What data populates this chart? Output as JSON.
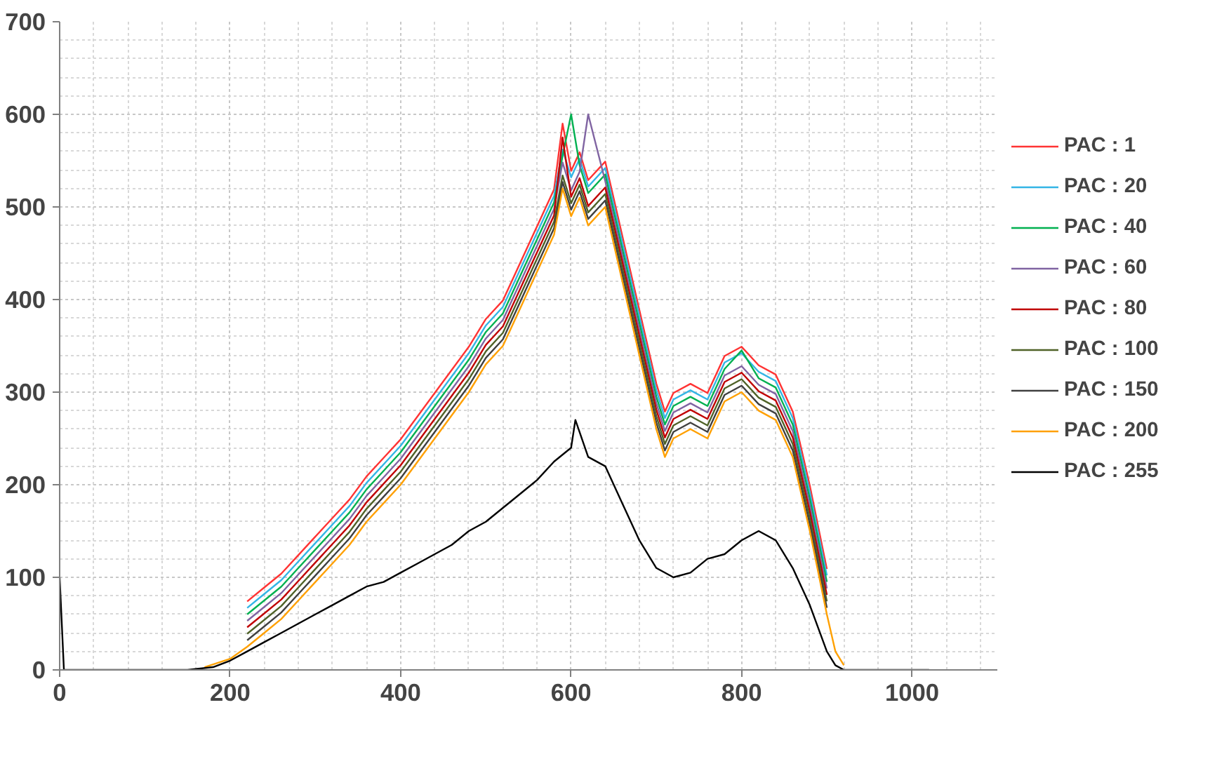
{
  "chart_data": {
    "type": "line",
    "x": [
      220,
      240,
      260,
      280,
      300,
      320,
      340,
      360,
      380,
      400,
      420,
      440,
      460,
      480,
      500,
      520,
      540,
      560,
      580,
      590,
      600,
      610,
      620,
      640,
      650,
      660,
      680,
      700,
      710,
      720,
      740,
      760,
      780,
      800,
      820,
      840,
      860,
      880,
      900
    ],
    "series": [
      {
        "name": "PAC : 1",
        "color": "#ff3333",
        "values": [
          74,
          89,
          104,
          124,
          144,
          164,
          184,
          209,
          229,
          249,
          274,
          299,
          324,
          349,
          379,
          399,
          439,
          479,
          519,
          590,
          539,
          559,
          529,
          549,
          509,
          469,
          389,
          309,
          279,
          299,
          309,
          299,
          339,
          349,
          329,
          319,
          279,
          199,
          109
        ]
      },
      {
        "name": "PAC : 20",
        "color": "#33b5e5",
        "values": [
          67,
          82,
          97,
          117,
          137,
          157,
          177,
          202,
          222,
          242,
          267,
          292,
          317,
          342,
          372,
          392,
          432,
          472,
          512,
          562,
          532,
          552,
          522,
          542,
          502,
          462,
          382,
          302,
          272,
          292,
          302,
          292,
          332,
          342,
          322,
          312,
          272,
          192,
          102
        ]
      },
      {
        "name": "PAC : 40",
        "color": "#00b050",
        "values": [
          60,
          75,
          90,
          110,
          130,
          150,
          170,
          195,
          215,
          235,
          260,
          285,
          310,
          335,
          365,
          385,
          425,
          465,
          505,
          555,
          600,
          545,
          515,
          535,
          495,
          455,
          375,
          295,
          265,
          285,
          295,
          285,
          325,
          345,
          315,
          305,
          265,
          185,
          95
        ]
      },
      {
        "name": "PAC : 60",
        "color": "#8064a2",
        "values": [
          53,
          68,
          83,
          103,
          123,
          143,
          163,
          188,
          208,
          228,
          253,
          278,
          303,
          328,
          358,
          378,
          418,
          458,
          498,
          548,
          518,
          538,
          600,
          528,
          488,
          448,
          368,
          288,
          258,
          278,
          288,
          278,
          318,
          328,
          308,
          298,
          258,
          178,
          88
        ]
      },
      {
        "name": "PAC : 80",
        "color": "#c00000",
        "values": [
          46,
          61,
          76,
          96,
          116,
          136,
          156,
          181,
          201,
          221,
          246,
          271,
          296,
          321,
          351,
          371,
          411,
          451,
          491,
          575,
          511,
          531,
          501,
          521,
          481,
          441,
          361,
          281,
          251,
          271,
          281,
          271,
          311,
          321,
          301,
          291,
          251,
          171,
          81
        ]
      },
      {
        "name": "PAC : 100",
        "color": "#4f6228",
        "values": [
          39,
          54,
          69,
          89,
          109,
          129,
          149,
          174,
          194,
          214,
          239,
          264,
          289,
          314,
          344,
          364,
          404,
          444,
          484,
          534,
          504,
          524,
          494,
          514,
          474,
          434,
          354,
          274,
          244,
          264,
          274,
          264,
          304,
          314,
          294,
          284,
          244,
          164,
          74
        ]
      },
      {
        "name": "PAC : 150",
        "color": "#404040",
        "values": [
          32,
          47,
          62,
          82,
          102,
          122,
          142,
          167,
          187,
          207,
          232,
          257,
          282,
          307,
          337,
          357,
          397,
          437,
          477,
          527,
          497,
          517,
          487,
          507,
          467,
          427,
          347,
          267,
          237,
          257,
          267,
          257,
          297,
          307,
          287,
          277,
          237,
          157,
          67
        ]
      },
      {
        "name": "PAC : 200",
        "color": "#ffa000",
        "x": [
          170,
          200,
          220,
          240,
          260,
          280,
          300,
          320,
          340,
          360,
          380,
          400,
          420,
          440,
          460,
          480,
          500,
          520,
          540,
          560,
          580,
          590,
          600,
          610,
          620,
          640,
          650,
          660,
          680,
          700,
          710,
          720,
          740,
          760,
          780,
          800,
          820,
          840,
          860,
          880,
          900,
          910,
          920
        ],
        "values": [
          3,
          12,
          25,
          40,
          55,
          75,
          95,
          115,
          135,
          160,
          180,
          200,
          225,
          250,
          275,
          300,
          330,
          350,
          390,
          430,
          470,
          520,
          490,
          510,
          480,
          500,
          460,
          420,
          340,
          260,
          230,
          250,
          260,
          250,
          290,
          300,
          280,
          270,
          230,
          150,
          60,
          20,
          5
        ]
      },
      {
        "name": "PAC : 255",
        "color": "#000000",
        "x": [
          0,
          5,
          150,
          180,
          200,
          220,
          240,
          260,
          280,
          300,
          320,
          340,
          360,
          380,
          400,
          420,
          440,
          460,
          480,
          500,
          520,
          540,
          560,
          580,
          600,
          605,
          620,
          640,
          660,
          680,
          700,
          720,
          740,
          760,
          780,
          800,
          820,
          840,
          860,
          880,
          890,
          900,
          910,
          920,
          1020
        ],
        "values": [
          100,
          0,
          0,
          3,
          10,
          20,
          30,
          40,
          50,
          60,
          70,
          80,
          90,
          95,
          105,
          115,
          125,
          135,
          150,
          160,
          175,
          190,
          205,
          225,
          240,
          270,
          230,
          220,
          180,
          140,
          110,
          100,
          105,
          120,
          125,
          140,
          150,
          140,
          110,
          70,
          45,
          20,
          5,
          0,
          0
        ]
      }
    ],
    "xlim": [
      0,
      1100
    ],
    "xticks": [
      0,
      200,
      400,
      600,
      800,
      1000
    ],
    "ylim": [
      0,
      700
    ],
    "yticks": [
      0,
      100,
      200,
      300,
      400,
      500,
      600,
      700
    ],
    "grid": true,
    "legend": "right",
    "line_style": "solid",
    "marker": "none"
  }
}
